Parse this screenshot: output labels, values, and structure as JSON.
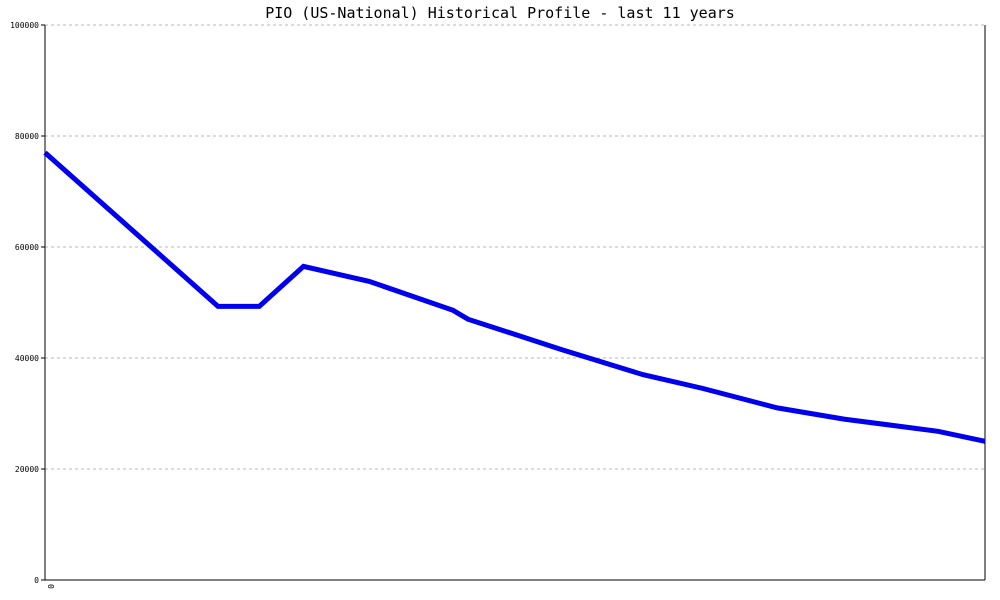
{
  "chart_data": {
    "type": "line",
    "title": "PIO (US-National) Historical Profile - last 11 years",
    "xlabel": "",
    "ylabel": "",
    "ylim": [
      0,
      100000
    ],
    "yticks": [
      0,
      20000,
      40000,
      60000,
      80000,
      100000
    ],
    "ytick_labels": [
      "0",
      "20000",
      "40000",
      "60000",
      "80000",
      "100000"
    ],
    "xtick_labels": [
      "0"
    ],
    "grid": true,
    "series": [
      {
        "color": "#0000ee",
        "points": [
          [
            0.0,
            77000
          ],
          [
            1.84,
            49300
          ],
          [
            2.28,
            49300
          ],
          [
            2.75,
            56500
          ],
          [
            3.45,
            53800
          ],
          [
            4.34,
            48600
          ],
          [
            4.5,
            47000
          ],
          [
            5.5,
            41500
          ],
          [
            6.36,
            37000
          ],
          [
            7.0,
            34500
          ],
          [
            7.79,
            31000
          ],
          [
            8.5,
            29000
          ],
          [
            9.5,
            26800
          ],
          [
            10.0,
            25000
          ]
        ]
      }
    ],
    "xlim": [
      0,
      10
    ]
  }
}
